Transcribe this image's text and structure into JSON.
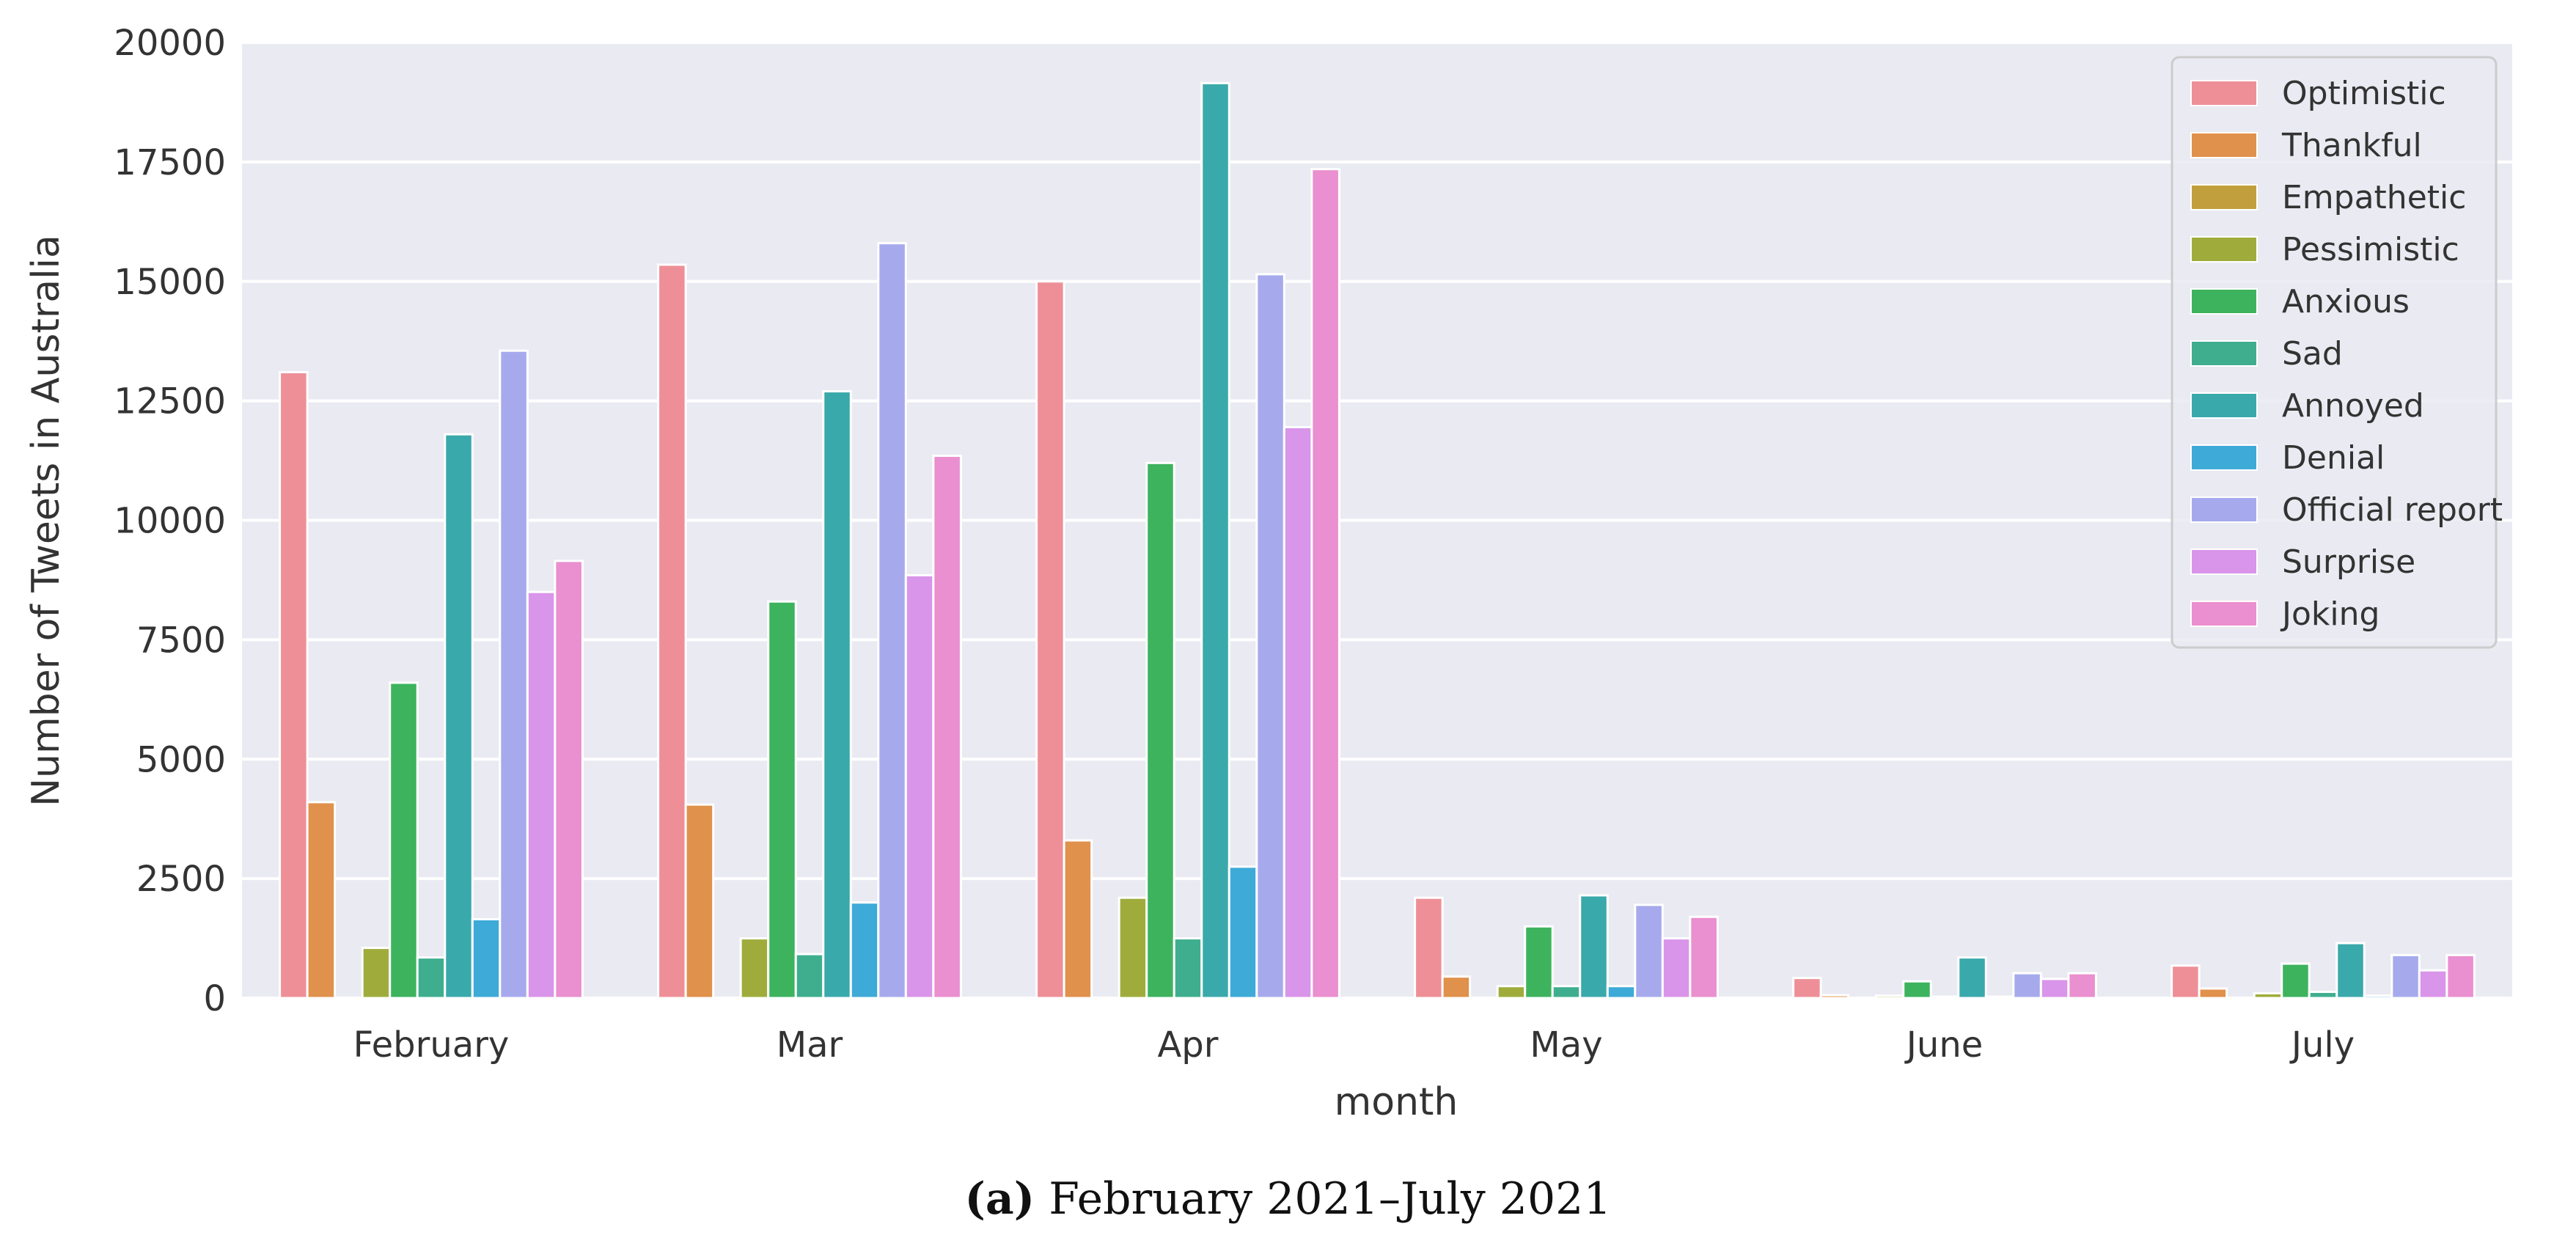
{
  "caption": {
    "label": "(a)",
    "text": "February 2021–July 2021"
  },
  "chart_data": {
    "type": "bar",
    "xlabel": "month",
    "ylabel": "Number of Tweets in Australia",
    "ylim": [
      0,
      20000
    ],
    "yticks": [
      0,
      2500,
      5000,
      7500,
      10000,
      12500,
      15000,
      17500,
      20000
    ],
    "grid": true,
    "legend": "top-right",
    "categories": [
      "February",
      "Mar",
      "Apr",
      "May",
      "June",
      "July"
    ],
    "series": [
      {
        "name": "Optimistic",
        "color": "#ee8f98",
        "values": [
          13100,
          15350,
          15000,
          2100,
          420,
          680
        ]
      },
      {
        "name": "Thankful",
        "color": "#e0914c",
        "values": [
          4100,
          4050,
          3300,
          450,
          60,
          200
        ]
      },
      {
        "name": "Empathetic",
        "color": "#c19f3c",
        "values": [
          0,
          0,
          0,
          0,
          0,
          0
        ]
      },
      {
        "name": "Pessimistic",
        "color": "#9fac3c",
        "values": [
          1050,
          1250,
          2100,
          250,
          50,
          100
        ]
      },
      {
        "name": "Anxious",
        "color": "#3db35e",
        "values": [
          6600,
          8300,
          11200,
          1500,
          350,
          720
        ]
      },
      {
        "name": "Sad",
        "color": "#3fae8e",
        "values": [
          850,
          920,
          1250,
          250,
          30,
          130
        ]
      },
      {
        "name": "Annoyed",
        "color": "#3aa9ab",
        "values": [
          11800,
          12700,
          19150,
          2150,
          850,
          1150
        ]
      },
      {
        "name": "Denial",
        "color": "#3eaad8",
        "values": [
          1650,
          2000,
          2750,
          250,
          30,
          50
        ]
      },
      {
        "name": "Official report",
        "color": "#a6aaec",
        "values": [
          13550,
          15800,
          15150,
          1950,
          520,
          900
        ]
      },
      {
        "name": "Surprise",
        "color": "#d995e9",
        "values": [
          8500,
          8850,
          11950,
          1250,
          400,
          580
        ]
      },
      {
        "name": "Joking",
        "color": "#ea8fcf",
        "values": [
          9150,
          11350,
          17350,
          1700,
          520,
          900
        ]
      }
    ]
  }
}
